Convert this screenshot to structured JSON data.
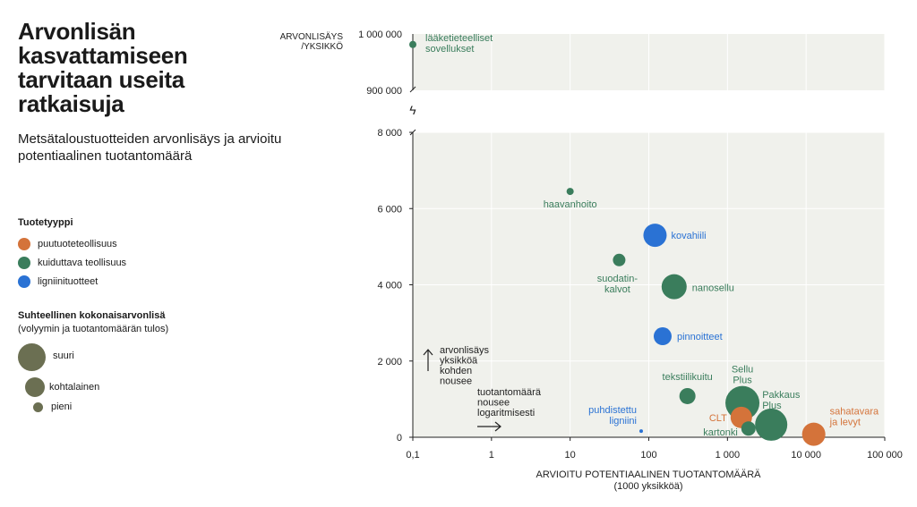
{
  "header": {
    "title": "Arvonlisän kasvattamiseen tarvitaan useita ratkaisuja",
    "subtitle": "Metsätaloustuotteiden arvonlisäys ja arvioitu potentiaalinen tuotantomäärä"
  },
  "legend": {
    "type_title": "Tuotetyyppi",
    "types": [
      {
        "label": "puutuoteteollisuus",
        "color": "#d4733a"
      },
      {
        "label": "kuiduttava teollisuus",
        "color": "#3a7d5c"
      },
      {
        "label": "ligniinituotteet",
        "color": "#2a72d4"
      }
    ],
    "size_title": "Suhteellinen kokonaisarvonlisä",
    "size_subtitle": "(volyymin ja tuotantomäärän tulos)",
    "sizes": [
      {
        "label": "suuri",
        "color": "#6b6f52"
      },
      {
        "label": "kohtalainen",
        "color": "#6b6f52"
      },
      {
        "label": "pieni",
        "color": "#6b6f52"
      }
    ]
  },
  "chart_data": {
    "type": "scatter",
    "x_scale": "log",
    "xlabel_line1": "ARVIOITU POTENTIAALINEN TUOTANTOMÄÄRÄ",
    "xlabel_line2": "(1000 yksikköä)",
    "ylabel_line1": "ARVONLISÄYS",
    "ylabel_line2": "/YKSIKKÖ",
    "xlim": [
      0.1,
      100000
    ],
    "ylim_lower": [
      0,
      8000
    ],
    "ylim_upper": [
      900000,
      1000000
    ],
    "x_ticks": [
      {
        "value": 0.1,
        "label": "0,1"
      },
      {
        "value": 1,
        "label": "1"
      },
      {
        "value": 10,
        "label": "10"
      },
      {
        "value": 100,
        "label": "100"
      },
      {
        "value": 1000,
        "label": "1 000"
      },
      {
        "value": 10000,
        "label": "10 000"
      },
      {
        "value": 100000,
        "label": "100 000"
      }
    ],
    "y_ticks_lower": [
      {
        "value": 0,
        "label": "0"
      },
      {
        "value": 2000,
        "label": "2 000"
      },
      {
        "value": 4000,
        "label": "4 000"
      },
      {
        "value": 6000,
        "label": "6 000"
      },
      {
        "value": 8000,
        "label": "8 000"
      }
    ],
    "y_ticks_upper": [
      {
        "value": 900000,
        "label": "900 000"
      },
      {
        "value": 1000000,
        "label": "1 000 000"
      }
    ],
    "axis_break_symbol": "ϟ",
    "points": [
      {
        "label": [
          "lääketieteelliset",
          "sovellukset"
        ],
        "x": 0.1,
        "y": 975000,
        "size": 4,
        "type": 1,
        "label_dx": 14,
        "label_dy": -4,
        "anchor": "start"
      },
      {
        "label": [
          "haavanhoito"
        ],
        "x": 10,
        "y": 6450,
        "size": 4,
        "type": 1,
        "label_dx": 0,
        "label_dy": 18,
        "anchor": "middle"
      },
      {
        "label": [
          "kovahiili"
        ],
        "x": 120,
        "y": 5300,
        "size": 13,
        "type": 2,
        "label_dx": 18,
        "label_dy": 4,
        "anchor": "start"
      },
      {
        "label": [
          "suodatin-",
          "kalvot"
        ],
        "x": 42,
        "y": 4650,
        "size": 7,
        "type": 1,
        "label_dx": -2,
        "label_dy": 24,
        "anchor": "middle"
      },
      {
        "label": [
          "nanosellu"
        ],
        "x": 210,
        "y": 3950,
        "size": 14,
        "type": 1,
        "label_dx": 20,
        "label_dy": 5,
        "anchor": "start"
      },
      {
        "label": [
          "pinnoitteet"
        ],
        "x": 150,
        "y": 2650,
        "size": 10,
        "type": 2,
        "label_dx": 16,
        "label_dy": 4,
        "anchor": "start"
      },
      {
        "label": [
          "tekstiilikuitu"
        ],
        "x": 310,
        "y": 1080,
        "size": 9,
        "type": 1,
        "label_dx": 0,
        "label_dy": -18,
        "anchor": "middle"
      },
      {
        "label": [
          "Sellu",
          "Plus"
        ],
        "x": 1550,
        "y": 900,
        "size": 19,
        "type": 1,
        "label_dx": 0,
        "label_dy": -34,
        "anchor": "middle"
      },
      {
        "label": [
          "Pakkaus",
          "Plus"
        ],
        "x": 3600,
        "y": 330,
        "size": 18,
        "type": 1,
        "label_dx": -10,
        "label_dy": -30,
        "anchor": "start"
      },
      {
        "label": [
          "CLT"
        ],
        "x": 1500,
        "y": 520,
        "size": 12,
        "type": 0,
        "label_dx": -16,
        "label_dy": 4,
        "anchor": "end"
      },
      {
        "label": [
          "kartonki"
        ],
        "x": 1850,
        "y": 230,
        "size": 8,
        "type": 1,
        "label_dx": -12,
        "label_dy": 8,
        "anchor": "end"
      },
      {
        "label": [
          "sahatavara",
          "ja levyt"
        ],
        "x": 12500,
        "y": 80,
        "size": 13,
        "type": 0,
        "label_dx": 18,
        "label_dy": -22,
        "anchor": "start"
      },
      {
        "label": [
          "puhdistettu",
          "ligniini"
        ],
        "x": 80,
        "y": 160,
        "size": 2,
        "type": 2,
        "label_dx": -5,
        "label_dy": -20,
        "anchor": "end"
      }
    ],
    "annotations": [
      {
        "lines": [
          "arvonlisäys",
          "yksikköä",
          "kohden",
          "nousee"
        ],
        "arrow": "up"
      },
      {
        "lines": [
          "tuotantomäärä",
          "nousee",
          "logaritmisesti"
        ],
        "arrow": "right"
      }
    ]
  }
}
